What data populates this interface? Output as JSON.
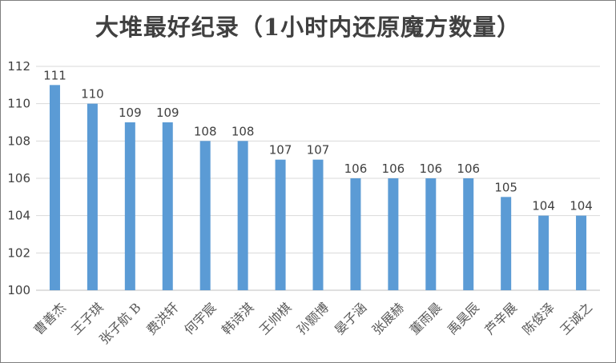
{
  "chart_data": {
    "type": "bar",
    "title": "大堆最好纪录（1小时内还原魔方数量）",
    "xlabel": "",
    "ylabel": "",
    "ylim": [
      100,
      112
    ],
    "yticks": [
      100,
      102,
      104,
      106,
      108,
      110,
      112
    ],
    "grid": true,
    "legend": "none",
    "bar_color": "#5b9bd5",
    "categories": [
      "曹善杰",
      "王子琪",
      "张子航 B",
      "费洪轩",
      "何宇宸",
      "韩诗淇",
      "王帅棋",
      "孙颢博",
      "晏子涵",
      "张展赫",
      "董雨晨",
      "禹昊辰",
      "芦辛展",
      "陈俊泽",
      "王诚之"
    ],
    "values": [
      111,
      110,
      109,
      109,
      108,
      108,
      107,
      107,
      106,
      106,
      106,
      106,
      105,
      104,
      104
    ]
  }
}
